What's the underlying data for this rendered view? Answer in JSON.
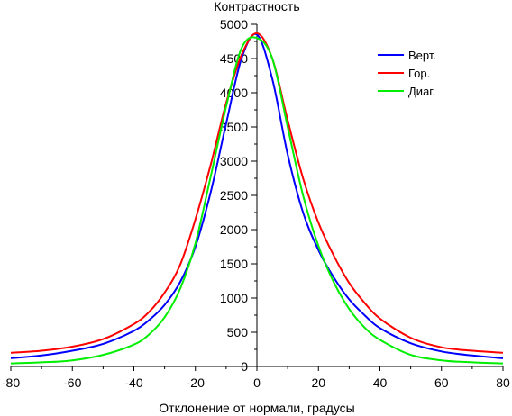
{
  "chart_data": {
    "type": "line",
    "title": "",
    "xlabel": "Отклонение от нормали, градусы",
    "ylabel": "Контрастность",
    "xlim": [
      -80,
      80
    ],
    "ylim": [
      0,
      5000
    ],
    "x_ticks": [
      "-80",
      "-60",
      "-40",
      "-20",
      "0",
      "20",
      "40",
      "60",
      "80"
    ],
    "y_ticks": [
      "0",
      "500",
      "1000",
      "1500",
      "2000",
      "2500",
      "3000",
      "3500",
      "4000",
      "4500",
      "5000"
    ],
    "legend_position": "top-right",
    "grid": false,
    "x": [
      -80,
      -70,
      -60,
      -50,
      -40,
      -35,
      -30,
      -25,
      -20,
      -15,
      -10,
      -5,
      0,
      5,
      10,
      15,
      20,
      25,
      30,
      35,
      40,
      50,
      60,
      70,
      80
    ],
    "series": [
      {
        "name": "Верт.",
        "color": "#0000ff",
        "values": [
          120,
          160,
          230,
          330,
          520,
          680,
          900,
          1230,
          1750,
          2550,
          3550,
          4500,
          4850,
          4200,
          3100,
          2250,
          1700,
          1300,
          980,
          750,
          560,
          340,
          220,
          160,
          120
        ]
      },
      {
        "name": "Гор.",
        "color": "#ff0000",
        "values": [
          200,
          230,
          290,
          400,
          620,
          800,
          1080,
          1480,
          2150,
          2950,
          3850,
          4550,
          4870,
          4500,
          3600,
          2750,
          2100,
          1620,
          1220,
          930,
          700,
          420,
          280,
          230,
          200
        ]
      },
      {
        "name": "Диаг.",
        "color": "#00ee00",
        "values": [
          45,
          60,
          90,
          170,
          320,
          470,
          720,
          1130,
          1800,
          2780,
          3800,
          4650,
          4800,
          4500,
          3500,
          2500,
          1760,
          1230,
          840,
          570,
          390,
          170,
          90,
          60,
          45
        ]
      }
    ]
  }
}
